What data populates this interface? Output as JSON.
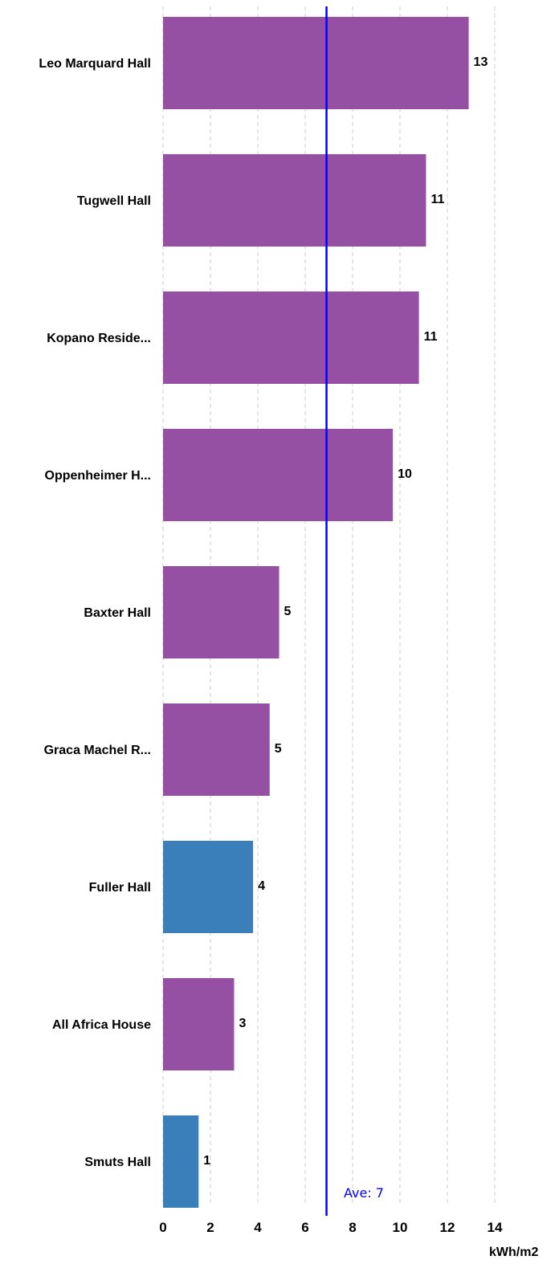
{
  "chart_data": {
    "type": "bar",
    "orientation": "horizontal",
    "categories": [
      "Leo Marquard Hall",
      "Tugwell Hall",
      "Kopano Reside...",
      "Oppenheimer H...",
      "Baxter Hall",
      "Graca Machel R...",
      "Fuller Hall",
      "All Africa House",
      "Smuts Hall"
    ],
    "values": [
      12.9,
      11.1,
      10.8,
      9.7,
      4.9,
      4.5,
      3.8,
      3.0,
      1.5
    ],
    "value_labels": [
      "13",
      "11",
      "11",
      "10",
      "5",
      "5",
      "4",
      "3",
      "1"
    ],
    "bar_colors": [
      "#9650a3",
      "#9650a3",
      "#9650a3",
      "#9650a3",
      "#9650a3",
      "#9650a3",
      "#3a7fba",
      "#9650a3",
      "#3a7fba"
    ],
    "x_ticks": [
      "0",
      "2",
      "4",
      "6",
      "8",
      "10",
      "12",
      "14"
    ],
    "xlim": [
      0,
      14
    ],
    "xlabel": "kWh/m2",
    "ylabel": "",
    "title": "",
    "grid": true,
    "average": {
      "value": 6.9,
      "label": "Ave: 7",
      "color": "#0000ff"
    }
  }
}
